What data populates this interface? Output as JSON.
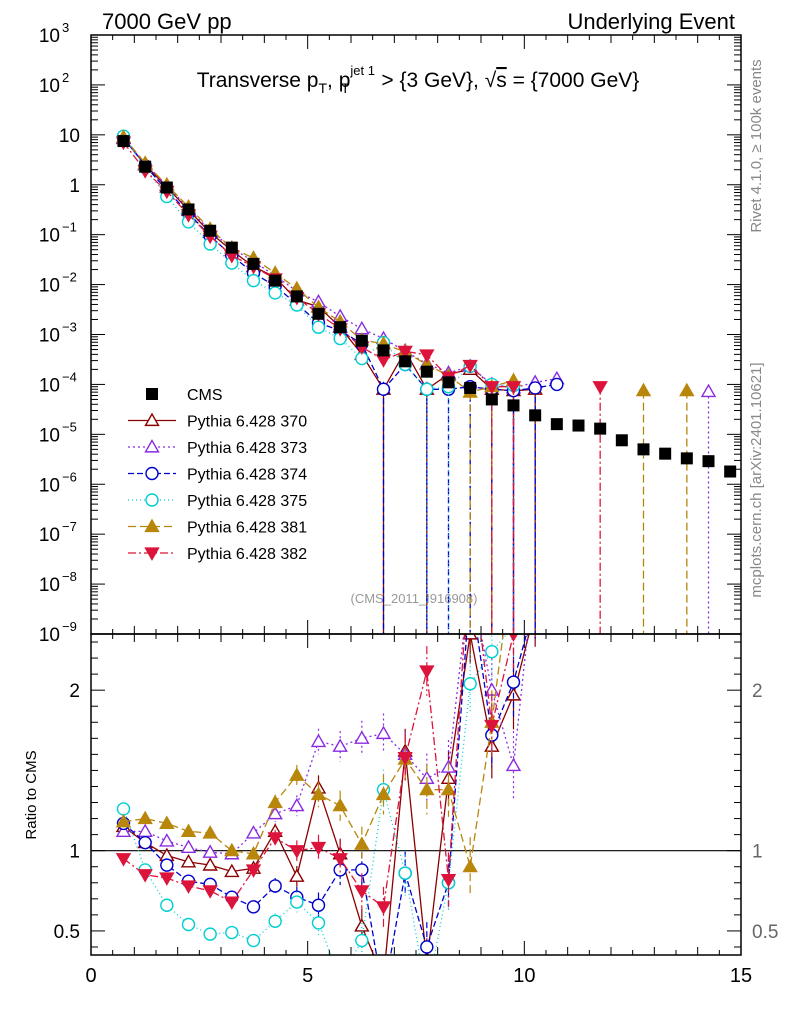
{
  "chart_data": {
    "type": "scatter",
    "header_left": "7000 GeV pp",
    "header_right": "Underlying Event",
    "title": {
      "main": "Transverse p",
      "sub1": "T",
      "sep": ", p",
      "sup2": "jet 1",
      "sub2": "T",
      "rest": " > {3 GeV}, ",
      "sqrt": "√",
      "s": "s",
      "tail": " = {7000 GeV}"
    },
    "side_text_top": "Rivet 4.1.0, ≥ 100k events",
    "side_text_bottom": "mcplots.cern.ch [arXiv:2401.10621]",
    "watermark": "(CMS_2011_I916908)",
    "ylabel_ratio": "Ratio to CMS",
    "xlim": [
      0,
      15
    ],
    "ylim_log_exp": [
      -9,
      3
    ],
    "ratio_ylim": [
      0.35,
      2.35
    ],
    "x_ticks": [
      "0",
      "5",
      "10",
      "15"
    ],
    "y_tick_labels": [
      {
        "exp": 3,
        "text": "10",
        "sup": "3"
      },
      {
        "exp": 2,
        "text": "10",
        "sup": "2"
      },
      {
        "exp": 1,
        "text": "10",
        "sup": ""
      },
      {
        "exp": 0,
        "text": "1",
        "sup": ""
      },
      {
        "exp": -1,
        "text": "10",
        "sup": "−1"
      },
      {
        "exp": -2,
        "text": "10",
        "sup": "−2"
      },
      {
        "exp": -3,
        "text": "10",
        "sup": "−3"
      },
      {
        "exp": -4,
        "text": "10",
        "sup": "−4"
      },
      {
        "exp": -5,
        "text": "10",
        "sup": "−5"
      },
      {
        "exp": -6,
        "text": "10",
        "sup": "−6"
      },
      {
        "exp": -7,
        "text": "10",
        "sup": "−7"
      },
      {
        "exp": -8,
        "text": "10",
        "sup": "−8"
      },
      {
        "exp": -9,
        "text": "10",
        "sup": "−9"
      }
    ],
    "ratio_tick_labels": [
      {
        "v": 2,
        "text": "2"
      },
      {
        "v": 1,
        "text": "1"
      },
      {
        "v": 0.5,
        "text": "0.5"
      }
    ],
    "x": [
      0.75,
      1.25,
      1.75,
      2.25,
      2.75,
      3.25,
      3.75,
      4.25,
      4.75,
      5.25,
      5.75,
      6.25,
      6.75,
      7.25,
      7.75,
      8.25,
      8.75,
      9.25,
      9.75,
      10.25,
      10.75,
      11.25,
      11.75,
      12.25,
      12.75,
      13.25,
      13.75,
      14.25,
      14.75
    ],
    "data": {
      "name": "CMS",
      "values": [
        7.5,
        2.3,
        0.88,
        0.32,
        0.12,
        0.055,
        0.026,
        0.012,
        0.0058,
        0.0026,
        0.0014,
        0.00075,
        0.00048,
        0.00029,
        0.00018,
        0.00011,
        8.5e-05,
        5e-05,
        3.8e-05,
        2.4e-05,
        1.6e-05,
        1.5e-05,
        1.3e-05,
        7.6e-06,
        5e-06,
        4.1e-06,
        3.3e-06,
        2.9e-06,
        1.8e-06
      ]
    },
    "series": [
      {
        "name": "Pythia 6.428 370",
        "color": "#8B0000",
        "marker": "triangle-up-open",
        "dash": "",
        "values": [
          8.6,
          2.5,
          0.9,
          0.31,
          0.11,
          0.048,
          0.023,
          0.014,
          0.0049,
          0.0036,
          0.0014,
          0.0004,
          8e-05,
          0.00047,
          8e-05,
          0.00016,
          0.0002,
          8e-05,
          7.5e-05,
          8e-05,
          null,
          null,
          null,
          null,
          null,
          null,
          null,
          null,
          null
        ],
        "ratio": [
          1.15,
          1.05,
          0.97,
          0.93,
          0.91,
          0.87,
          0.89,
          1.12,
          0.84,
          1.39,
          0.98,
          0.53,
          0.2,
          1.62,
          0.3,
          1.45,
          2.35,
          1.65,
          1.97,
          2.5,
          null,
          null,
          null,
          null,
          null,
          null,
          null,
          null,
          null
        ]
      },
      {
        "name": "Pythia 6.428 373",
        "color": "#8A2BE2",
        "marker": "triangle-up-open",
        "dash": "2,3",
        "values": [
          8.4,
          2.6,
          0.98,
          0.33,
          0.12,
          0.054,
          0.029,
          0.015,
          0.0074,
          0.0045,
          0.0023,
          0.0013,
          0.00083,
          0.00046,
          0.00026,
          0.00017,
          0.00023,
          0.0001,
          8.5e-05,
          0.00011,
          0.00013,
          null,
          null,
          null,
          null,
          null,
          null,
          7.2e-05,
          null
        ],
        "ratio": [
          1.12,
          1.12,
          1.06,
          1.02,
          0.99,
          0.98,
          1.11,
          1.23,
          1.28,
          1.68,
          1.65,
          1.7,
          1.73,
          1.6,
          1.45,
          1.52,
          2.7,
          2.0,
          1.53,
          2.8,
          null,
          null,
          null,
          null,
          null,
          null,
          null,
          null,
          null
        ]
      },
      {
        "name": "Pythia 6.428 374",
        "color": "#0000CD",
        "marker": "circle-open",
        "dash": "6,3",
        "values": [
          8.8,
          2.4,
          0.78,
          0.27,
          0.094,
          0.038,
          0.017,
          0.0093,
          0.0041,
          0.0017,
          0.0012,
          0.00065,
          8e-05,
          0.00025,
          8e-05,
          8e-05,
          9e-05,
          8e-05,
          7.5e-05,
          8.5e-05,
          0.0001,
          null,
          null,
          null,
          null,
          null,
          null,
          null,
          null
        ],
        "ratio": [
          1.17,
          1.05,
          0.91,
          0.81,
          0.79,
          0.71,
          0.65,
          0.78,
          0.71,
          0.66,
          0.88,
          0.88,
          0.1,
          0.86,
          0.4,
          0.8,
          2.65,
          1.72,
          2.05,
          2.55,
          null,
          null,
          null,
          null,
          null,
          null,
          null,
          null,
          null
        ]
      },
      {
        "name": "Pythia 6.428 375",
        "color": "#00CED1",
        "marker": "circle-open",
        "dash": "1,3",
        "values": [
          9.4,
          2.2,
          0.58,
          0.18,
          0.065,
          0.027,
          0.012,
          0.0068,
          0.0039,
          0.0014,
          0.00083,
          0.00033,
          0.00069,
          0.00025,
          8e-05,
          9e-05,
          0.00023,
          0.0001,
          9.5e-05,
          null,
          null,
          null,
          null,
          null,
          null,
          null,
          null,
          null,
          null
        ],
        "ratio": [
          1.26,
          0.88,
          0.66,
          0.54,
          0.48,
          0.49,
          0.44,
          0.56,
          0.68,
          0.55,
          0.2,
          0.44,
          1.38,
          0.86,
          0.1,
          0.8,
          2.04,
          2.24,
          2.4,
          null,
          null,
          null,
          null,
          null,
          null,
          null,
          null,
          null,
          null
        ]
      },
      {
        "name": "Pythia 6.428 381",
        "color": "#B8860B",
        "marker": "triangle-up-filled",
        "dash": "8,4",
        "values": [
          9.0,
          2.7,
          1.0,
          0.36,
          0.13,
          0.054,
          0.034,
          0.017,
          0.0083,
          0.0035,
          0.0018,
          0.00078,
          0.00065,
          0.00045,
          0.00025,
          0.00015,
          7e-05,
          9e-05,
          0.00012,
          null,
          null,
          null,
          null,
          null,
          7.5e-05,
          null,
          7.5e-05,
          null,
          null
        ],
        "ratio": [
          1.18,
          1.2,
          1.17,
          1.12,
          1.11,
          1.0,
          0.98,
          1.3,
          1.47,
          1.35,
          1.28,
          1.04,
          1.35,
          1.57,
          1.38,
          1.38,
          0.9,
          1.8,
          2.85,
          null,
          null,
          null,
          null,
          null,
          null,
          null,
          null,
          null,
          null
        ]
      },
      {
        "name": "Pythia 6.428 382",
        "color": "#DC143C",
        "marker": "triangle-down-filled",
        "dash": "8,3,2,3",
        "values": [
          7.1,
          1.9,
          0.74,
          0.25,
          0.093,
          0.038,
          0.023,
          0.013,
          0.0055,
          0.0026,
          0.0013,
          0.00056,
          0.00031,
          0.00046,
          0.00039,
          0.00014,
          0.00024,
          9e-05,
          9e-05,
          null,
          null,
          null,
          9e-05,
          null,
          null,
          null,
          null,
          null,
          null
        ],
        "ratio": [
          0.95,
          0.85,
          0.83,
          0.78,
          0.75,
          0.68,
          0.88,
          1.08,
          1.0,
          1.02,
          0.95,
          0.75,
          0.65,
          1.58,
          2.12,
          0.82,
          2.9,
          1.78,
          2.35,
          null,
          null,
          null,
          null,
          null,
          null,
          null,
          null,
          null,
          null
        ]
      }
    ]
  }
}
